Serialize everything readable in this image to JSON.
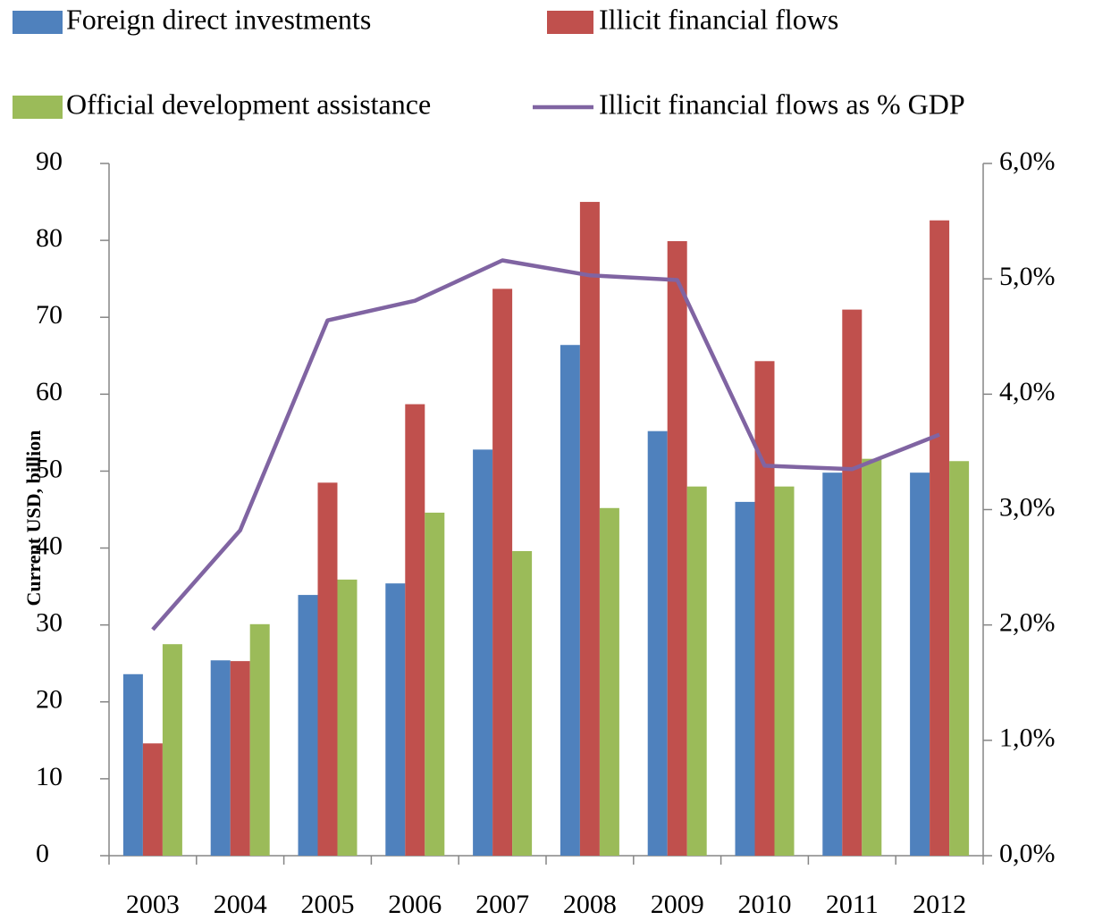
{
  "chart_data": {
    "type": "bar",
    "y_label": "Current USD, billion",
    "categories": [
      "2003",
      "2004",
      "2005",
      "2006",
      "2007",
      "2008",
      "2009",
      "2010",
      "2011",
      "2012"
    ],
    "series": [
      {
        "name": "Foreign direct investments",
        "color": "#4f81bd",
        "values": [
          23.6,
          25.4,
          33.9,
          35.4,
          52.8,
          66.4,
          55.2,
          46.0,
          49.8,
          49.8
        ]
      },
      {
        "name": "Illicit financial flows",
        "color": "#c0504d",
        "values": [
          14.6,
          25.3,
          48.5,
          58.7,
          73.7,
          85.0,
          79.9,
          64.3,
          71.0,
          82.6
        ]
      },
      {
        "name": "Official development assistance",
        "color": "#9bbb59",
        "values": [
          27.5,
          30.1,
          35.9,
          44.6,
          39.6,
          45.2,
          48.0,
          48.0,
          51.6,
          51.3
        ]
      },
      {
        "name": "Illicit financial flows as % GDP",
        "color": "#8064a2",
        "type": "line",
        "axis": "y2",
        "values": [
          1.96,
          2.82,
          4.64,
          4.81,
          5.16,
          5.03,
          4.99,
          3.38,
          3.35,
          3.65
        ]
      }
    ],
    "ylim": [
      0,
      90
    ],
    "yticks": [
      0,
      10,
      20,
      30,
      40,
      50,
      60,
      70,
      80,
      90
    ],
    "y2lim": [
      0,
      6
    ],
    "y2ticks": [
      {
        "value": 0,
        "label": "0,0%"
      },
      {
        "value": 1,
        "label": "1,0%"
      },
      {
        "value": 2,
        "label": "2,0%"
      },
      {
        "value": 3,
        "label": "3,0%"
      },
      {
        "value": 4,
        "label": "4,0%"
      },
      {
        "value": 5,
        "label": "5,0%"
      },
      {
        "value": 6,
        "label": "6,0%"
      }
    ],
    "grid": false
  }
}
